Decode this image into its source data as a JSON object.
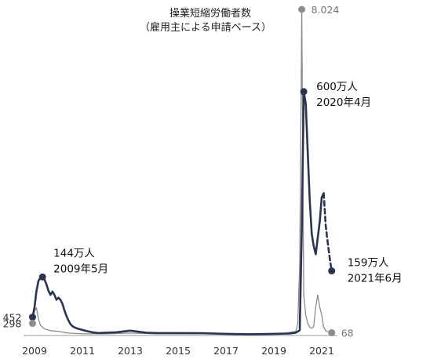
{
  "chart_data": {
    "type": "line",
    "title": "操業短縮労働者数",
    "subtitle": "（雇用主による申請ベース）",
    "x_ticks": [
      "2009",
      "2011",
      "2013",
      "2015",
      "2017",
      "2019",
      "2021"
    ],
    "xlim": [
      "2008-12",
      "2021-10"
    ],
    "ylim": [
      0,
      8100
    ],
    "grid": false,
    "legend": "none",
    "colors": {
      "realized": "#2b3550",
      "applications": "#8c8c8c"
    },
    "series": [
      {
        "values": [
          {
            "x": "2008-12",
            "y": 452
          },
          {
            "x": "2009-01",
            "y": 700
          },
          {
            "x": "2009-02",
            "y": 1100
          },
          {
            "x": "2009-03",
            "y": 1350
          },
          {
            "x": "2009-04",
            "y": 1420
          },
          {
            "x": "2009-05",
            "y": 1440
          },
          {
            "x": "2009-06",
            "y": 1380
          },
          {
            "x": "2009-07",
            "y": 1250
          },
          {
            "x": "2009-08",
            "y": 1100
          },
          {
            "x": "2009-09",
            "y": 1000
          },
          {
            "x": "2009-10",
            "y": 1080
          },
          {
            "x": "2009-11",
            "y": 1000
          },
          {
            "x": "2009-12",
            "y": 880
          },
          {
            "x": "2010-01",
            "y": 930
          },
          {
            "x": "2010-02",
            "y": 880
          },
          {
            "x": "2010-03",
            "y": 780
          },
          {
            "x": "2010-04",
            "y": 620
          },
          {
            "x": "2010-05",
            "y": 480
          },
          {
            "x": "2010-06",
            "y": 370
          },
          {
            "x": "2010-07",
            "y": 280
          },
          {
            "x": "2010-08",
            "y": 230
          },
          {
            "x": "2010-09",
            "y": 200
          },
          {
            "x": "2010-10",
            "y": 180
          },
          {
            "x": "2010-12",
            "y": 150
          },
          {
            "x": "2011-03",
            "y": 110
          },
          {
            "x": "2011-06",
            "y": 80
          },
          {
            "x": "2011-09",
            "y": 60
          },
          {
            "x": "2012-01",
            "y": 70
          },
          {
            "x": "2012-06",
            "y": 80
          },
          {
            "x": "2013-01",
            "y": 120
          },
          {
            "x": "2013-04",
            "y": 100
          },
          {
            "x": "2013-09",
            "y": 70
          },
          {
            "x": "2014-03",
            "y": 60
          },
          {
            "x": "2015-01",
            "y": 60
          },
          {
            "x": "2016-01",
            "y": 55
          },
          {
            "x": "2017-01",
            "y": 40
          },
          {
            "x": "2018-01",
            "y": 30
          },
          {
            "x": "2019-01",
            "y": 40
          },
          {
            "x": "2019-09",
            "y": 50
          },
          {
            "x": "2019-12",
            "y": 70
          },
          {
            "x": "2020-02",
            "y": 130
          },
          {
            "x": "2020-03",
            "y": 2600
          },
          {
            "x": "2020-04",
            "y": 6000
          },
          {
            "x": "2020-05",
            "y": 5700
          },
          {
            "x": "2020-06",
            "y": 4500
          },
          {
            "x": "2020-07",
            "y": 3300
          },
          {
            "x": "2020-08",
            "y": 2500
          },
          {
            "x": "2020-09",
            "y": 2200
          },
          {
            "x": "2020-10",
            "y": 2000
          },
          {
            "x": "2020-11",
            "y": 2400
          },
          {
            "x": "2020-12",
            "y": 2800
          },
          {
            "x": "2021-01",
            "y": 3400
          },
          {
            "x": "2021-02",
            "y": 3500
          }
        ]
      },
      {
        "style": "dashed",
        "values": [
          {
            "x": "2021-02",
            "y": 3500
          },
          {
            "x": "2021-03",
            "y": 2700
          },
          {
            "x": "2021-04",
            "y": 2300
          },
          {
            "x": "2021-05",
            "y": 1900
          },
          {
            "x": "2021-06",
            "y": 1590
          }
        ]
      },
      {
        "values": [
          {
            "x": "2008-12",
            "y": 298
          },
          {
            "x": "2009-01",
            "y": 600
          },
          {
            "x": "2009-02",
            "y": 680
          },
          {
            "x": "2009-03",
            "y": 400
          },
          {
            "x": "2009-04",
            "y": 250
          },
          {
            "x": "2009-06",
            "y": 160
          },
          {
            "x": "2009-09",
            "y": 120
          },
          {
            "x": "2010-01",
            "y": 100
          },
          {
            "x": "2010-06",
            "y": 60
          },
          {
            "x": "2011-01",
            "y": 40
          },
          {
            "x": "2012-01",
            "y": 40
          },
          {
            "x": "2013-01",
            "y": 60
          },
          {
            "x": "2014-01",
            "y": 40
          },
          {
            "x": "2016-01",
            "y": 40
          },
          {
            "x": "2018-01",
            "y": 30
          },
          {
            "x": "2019-06",
            "y": 50
          },
          {
            "x": "2019-12",
            "y": 100
          },
          {
            "x": "2020-01",
            "y": 300
          },
          {
            "x": "2020-02",
            "y": 1800
          },
          {
            "x": "2020-03",
            "y": 8024
          },
          {
            "x": "2020-04",
            "y": 1000
          },
          {
            "x": "2020-05",
            "y": 500
          },
          {
            "x": "2020-06",
            "y": 300
          },
          {
            "x": "2020-07",
            "y": 200
          },
          {
            "x": "2020-08",
            "y": 180
          },
          {
            "x": "2020-09",
            "y": 220
          },
          {
            "x": "2020-10",
            "y": 700
          },
          {
            "x": "2020-11",
            "y": 1000
          },
          {
            "x": "2020-12",
            "y": 700
          },
          {
            "x": "2021-01",
            "y": 500
          },
          {
            "x": "2021-02",
            "y": 200
          },
          {
            "x": "2021-03",
            "y": 120
          },
          {
            "x": "2021-04",
            "y": 90
          },
          {
            "x": "2021-05",
            "y": 75
          },
          {
            "x": "2021-06",
            "y": 68
          }
        ]
      }
    ],
    "annotations": [
      {
        "x": "2009-05",
        "y": 1440,
        "series": "realized",
        "lines": [
          "144万人",
          "2009年5月"
        ],
        "side": "right"
      },
      {
        "x": "2020-04",
        "y": 6000,
        "series": "realized",
        "lines": [
          "600万人",
          "2020年4月"
        ],
        "side": "right"
      },
      {
        "x": "2021-06",
        "y": 1590,
        "series": "realized",
        "lines": [
          "159万人",
          "2021年6月"
        ],
        "side": "right"
      }
    ],
    "endpoint_labels": [
      {
        "x": "2008-12",
        "y": 452,
        "series": "realized",
        "text": "452",
        "side": "left"
      },
      {
        "x": "2008-12",
        "y": 298,
        "series": "applications",
        "text": "298",
        "side": "left"
      },
      {
        "x": "2020-03",
        "y": 8024,
        "series": "applications",
        "text": "8.024",
        "side": "right"
      },
      {
        "x": "2021-06",
        "y": 68,
        "series": "applications",
        "text": "68",
        "side": "right"
      }
    ]
  }
}
